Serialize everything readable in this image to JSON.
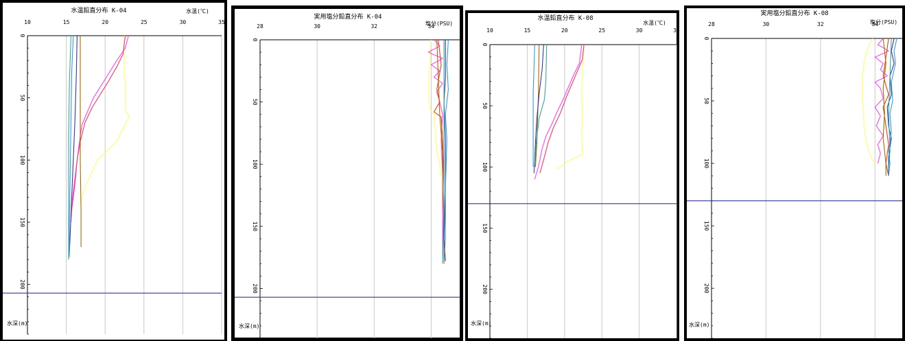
{
  "charts": [
    {
      "type": "line",
      "title": "水温鉛直分布 K-04",
      "xlabel": "水温(℃)",
      "ylabel": "水深(m)",
      "xlim": [
        10,
        35
      ],
      "ylim": [
        0,
        240
      ],
      "x_ticks": [
        "10",
        "15",
        "20",
        "25",
        "30",
        "35"
      ],
      "y_ticks": [
        "0",
        "50",
        "100",
        "150",
        "200"
      ],
      "bottom_line_depth": 207,
      "series": [
        {
          "color": "#ffff66",
          "points": [
            [
              22.5,
              0
            ],
            [
              22.4,
              20
            ],
            [
              22.6,
              40
            ],
            [
              22.6,
              60
            ],
            [
              23.1,
              65
            ],
            [
              21.5,
              85
            ],
            [
              19.0,
              100
            ],
            [
              18.3,
              110
            ],
            [
              17.5,
              120
            ],
            [
              16.8,
              135
            ]
          ]
        },
        {
          "color": "#ff44ff",
          "points": [
            [
              23.0,
              0
            ],
            [
              22.6,
              10
            ],
            [
              21.5,
              20
            ],
            [
              20.5,
              30
            ],
            [
              19.5,
              40
            ],
            [
              18.5,
              50
            ],
            [
              17.8,
              60
            ],
            [
              17.0,
              72
            ],
            [
              16.6,
              90
            ],
            [
              16.2,
              110
            ],
            [
              15.8,
              130
            ],
            [
              15.6,
              150
            ]
          ]
        },
        {
          "color": "#ff3366",
          "points": [
            [
              22.6,
              0
            ],
            [
              22.3,
              15
            ],
            [
              21.5,
              25
            ],
            [
              20.4,
              37
            ],
            [
              19.3,
              48
            ],
            [
              18.3,
              58
            ],
            [
              17.4,
              70
            ],
            [
              16.8,
              85
            ],
            [
              16.4,
              100
            ],
            [
              16.1,
              120
            ],
            [
              15.7,
              140
            ]
          ]
        },
        {
          "color": "#aa6600",
          "points": [
            [
              16.8,
              0
            ],
            [
              16.8,
              50
            ],
            [
              16.8,
              100
            ],
            [
              16.9,
              140
            ],
            [
              16.9,
              170
            ]
          ]
        },
        {
          "color": "#3333aa",
          "points": [
            [
              16.4,
              0
            ],
            [
              16.3,
              30
            ],
            [
              16.1,
              70
            ],
            [
              15.9,
              100
            ],
            [
              15.7,
              130
            ],
            [
              15.5,
              160
            ],
            [
              15.4,
              175
            ]
          ]
        },
        {
          "color": "#33aa99",
          "points": [
            [
              15.6,
              0
            ],
            [
              15.4,
              40
            ],
            [
              15.3,
              80
            ],
            [
              15.3,
              120
            ],
            [
              15.3,
              160
            ],
            [
              15.3,
              180
            ]
          ]
        },
        {
          "color": "#3399ee",
          "points": [
            [
              15.9,
              0
            ],
            [
              15.7,
              30
            ],
            [
              15.6,
              70
            ],
            [
              15.5,
              110
            ],
            [
              15.4,
              150
            ],
            [
              15.4,
              178
            ]
          ]
        }
      ]
    },
    {
      "type": "line",
      "title": "実用塩分鉛直分布 K-04",
      "xlabel": "塩分(PSU)",
      "ylabel": "水深(m)",
      "xlim": [
        28,
        35
      ],
      "ylim": [
        0,
        240
      ],
      "x_ticks": [
        "28",
        "30",
        "32",
        "34"
      ],
      "y_ticks": [
        "0",
        "50",
        "100",
        "150",
        "200"
      ],
      "bottom_line_depth": 207,
      "series": [
        {
          "color": "#ffff66",
          "points": [
            [
              34.0,
              0
            ],
            [
              33.95,
              20
            ],
            [
              33.9,
              40
            ],
            [
              33.95,
              55
            ],
            [
              34.1,
              60
            ],
            [
              34.2,
              90
            ],
            [
              34.3,
              100
            ],
            [
              34.35,
              110
            ]
          ]
        },
        {
          "color": "#ff44ff",
          "points": [
            [
              34.1,
              0
            ],
            [
              34.3,
              5
            ],
            [
              33.9,
              10
            ],
            [
              34.4,
              15
            ],
            [
              34.0,
              20
            ],
            [
              34.3,
              25
            ],
            [
              34.1,
              30
            ],
            [
              34.4,
              35
            ],
            [
              34.2,
              42
            ],
            [
              34.3,
              50
            ],
            [
              34.4,
              60
            ],
            [
              34.35,
              80
            ],
            [
              34.4,
              110
            ],
            [
              34.4,
              140
            ],
            [
              34.4,
              175
            ]
          ]
        },
        {
          "color": "#dd4400",
          "points": [
            [
              34.25,
              0
            ],
            [
              34.35,
              20
            ],
            [
              34.2,
              40
            ],
            [
              34.3,
              50
            ],
            [
              34.1,
              58
            ],
            [
              34.35,
              62
            ],
            [
              34.4,
              80
            ],
            [
              34.45,
              120
            ],
            [
              34.45,
              160
            ],
            [
              34.45,
              180
            ]
          ]
        },
        {
          "color": "#aa6600",
          "points": [
            [
              34.2,
              0
            ],
            [
              34.25,
              30
            ],
            [
              34.3,
              60
            ],
            [
              34.4,
              90
            ],
            [
              34.4,
              120
            ],
            [
              34.45,
              150
            ],
            [
              34.45,
              178
            ]
          ]
        },
        {
          "color": "#3333aa",
          "points": [
            [
              34.5,
              0
            ],
            [
              34.5,
              30
            ],
            [
              34.45,
              50
            ],
            [
              34.5,
              80
            ],
            [
              34.5,
              120
            ],
            [
              34.45,
              160
            ],
            [
              34.5,
              178
            ]
          ]
        },
        {
          "color": "#33aa99",
          "points": [
            [
              34.45,
              0
            ],
            [
              34.45,
              60
            ],
            [
              34.45,
              120
            ],
            [
              34.4,
              180
            ]
          ]
        },
        {
          "color": "#3399ee",
          "points": [
            [
              34.6,
              0
            ],
            [
              34.55,
              20
            ],
            [
              34.6,
              40
            ],
            [
              34.5,
              60
            ],
            [
              34.55,
              80
            ],
            [
              34.5,
              120
            ],
            [
              34.5,
              160
            ],
            [
              34.45,
              178
            ]
          ]
        }
      ]
    },
    {
      "type": "line",
      "title": "水温鉛直分布 K-08",
      "xlabel": "水温(℃)",
      "ylabel": "水深(m)",
      "xlim": [
        10,
        35
      ],
      "ylim": [
        0,
        240
      ],
      "x_ticks": [
        "10",
        "15",
        "20",
        "25",
        "30",
        "35"
      ],
      "y_ticks": [
        "0",
        "50",
        "100",
        "150",
        "200"
      ],
      "bottom_line_depth": 130,
      "series": [
        {
          "color": "#ffff66",
          "points": [
            [
              22.6,
              0
            ],
            [
              22.4,
              20
            ],
            [
              22.3,
              40
            ],
            [
              22.4,
              60
            ],
            [
              22.3,
              70
            ],
            [
              22.4,
              90
            ],
            [
              20.5,
              95
            ],
            [
              19.0,
              102
            ]
          ]
        },
        {
          "color": "#ff44ff",
          "points": [
            [
              22.3,
              0
            ],
            [
              22.0,
              15
            ],
            [
              21.2,
              25
            ],
            [
              20.5,
              35
            ],
            [
              19.8,
              45
            ],
            [
              19.0,
              55
            ],
            [
              18.3,
              65
            ],
            [
              17.5,
              75
            ],
            [
              17.0,
              85
            ],
            [
              16.5,
              100
            ],
            [
              16.0,
              110
            ]
          ]
        },
        {
          "color": "#ff3366",
          "points": [
            [
              22.6,
              0
            ],
            [
              22.4,
              12
            ],
            [
              21.7,
              22
            ],
            [
              21.0,
              32
            ],
            [
              20.3,
              42
            ],
            [
              19.5,
              55
            ],
            [
              18.5,
              68
            ],
            [
              17.8,
              80
            ],
            [
              17.3,
              92
            ],
            [
              16.7,
              105
            ]
          ]
        },
        {
          "color": "#aa6600",
          "points": [
            [
              16.6,
              0
            ],
            [
              16.5,
              40
            ],
            [
              16.3,
              80
            ],
            [
              16.1,
              100
            ]
          ]
        },
        {
          "color": "#3333aa",
          "points": [
            [
              17.2,
              0
            ],
            [
              17.0,
              20
            ],
            [
              16.6,
              40
            ],
            [
              16.3,
              60
            ],
            [
              16.1,
              80
            ],
            [
              16.0,
              95
            ],
            [
              15.9,
              105
            ]
          ]
        },
        {
          "color": "#33aa99",
          "points": [
            [
              17.6,
              0
            ],
            [
              17.5,
              30
            ],
            [
              17.3,
              45
            ],
            [
              16.6,
              60
            ],
            [
              16.2,
              80
            ],
            [
              16.0,
              100
            ]
          ]
        },
        {
          "color": "#3399ee",
          "points": [
            [
              16.0,
              0
            ],
            [
              15.8,
              40
            ],
            [
              15.8,
              80
            ],
            [
              15.8,
              100
            ]
          ]
        }
      ]
    },
    {
      "type": "line",
      "title": "実用塩分鉛直分布 K-08",
      "xlabel": "塩分(PSU)",
      "ylabel": "水深(m)",
      "xlim": [
        28,
        35
      ],
      "ylim": [
        0,
        240
      ],
      "x_ticks": [
        "28",
        "30",
        "32",
        "34"
      ],
      "y_ticks": [
        "0",
        "50",
        "100",
        "150",
        "200"
      ],
      "bottom_line_depth": 130,
      "series": [
        {
          "color": "#ffff66",
          "points": [
            [
              33.9,
              0
            ],
            [
              33.7,
              10
            ],
            [
              33.6,
              20
            ],
            [
              33.55,
              30
            ],
            [
              33.55,
              50
            ],
            [
              33.6,
              70
            ],
            [
              33.7,
              85
            ],
            [
              33.85,
              95
            ],
            [
              34.0,
              100
            ]
          ]
        },
        {
          "color": "#ff44ff",
          "points": [
            [
              34.3,
              0
            ],
            [
              34.1,
              5
            ],
            [
              34.5,
              10
            ],
            [
              34.0,
              15
            ],
            [
              34.3,
              20
            ],
            [
              34.2,
              25
            ],
            [
              34.45,
              30
            ],
            [
              34.0,
              35
            ],
            [
              34.2,
              40
            ],
            [
              34.3,
              48
            ],
            [
              34.0,
              55
            ],
            [
              34.2,
              62
            ],
            [
              34.05,
              70
            ],
            [
              34.3,
              78
            ],
            [
              34.1,
              85
            ],
            [
              34.2,
              92
            ],
            [
              34.1,
              100
            ]
          ]
        },
        {
          "color": "#dd4400",
          "points": [
            [
              34.5,
              0
            ],
            [
              34.4,
              15
            ],
            [
              34.3,
              30
            ],
            [
              34.5,
              45
            ],
            [
              34.3,
              55
            ],
            [
              34.4,
              70
            ],
            [
              34.5,
              85
            ],
            [
              34.4,
              100
            ],
            [
              34.5,
              110
            ]
          ]
        },
        {
          "color": "#aa6600",
          "points": [
            [
              34.3,
              0
            ],
            [
              34.4,
              20
            ],
            [
              34.3,
              40
            ],
            [
              34.35,
              60
            ],
            [
              34.3,
              80
            ],
            [
              34.4,
              100
            ],
            [
              34.4,
              110
            ]
          ]
        },
        {
          "color": "#3333aa",
          "points": [
            [
              34.7,
              0
            ],
            [
              34.6,
              10
            ],
            [
              34.7,
              20
            ],
            [
              34.55,
              30
            ],
            [
              34.6,
              45
            ],
            [
              34.45,
              55
            ],
            [
              34.5,
              70
            ],
            [
              34.6,
              80
            ],
            [
              34.5,
              95
            ],
            [
              34.5,
              110
            ]
          ]
        },
        {
          "color": "#33aa99",
          "points": [
            [
              34.6,
              0
            ],
            [
              34.55,
              30
            ],
            [
              34.5,
              60
            ],
            [
              34.55,
              90
            ],
            [
              34.5,
              105
            ]
          ]
        },
        {
          "color": "#3399ee",
          "points": [
            [
              34.8,
              0
            ],
            [
              34.7,
              10
            ],
            [
              34.75,
              20
            ],
            [
              34.6,
              35
            ],
            [
              34.65,
              50
            ],
            [
              34.55,
              60
            ],
            [
              34.6,
              75
            ],
            [
              34.5,
              90
            ],
            [
              34.55,
              100
            ],
            [
              34.5,
              110
            ]
          ]
        }
      ]
    }
  ]
}
